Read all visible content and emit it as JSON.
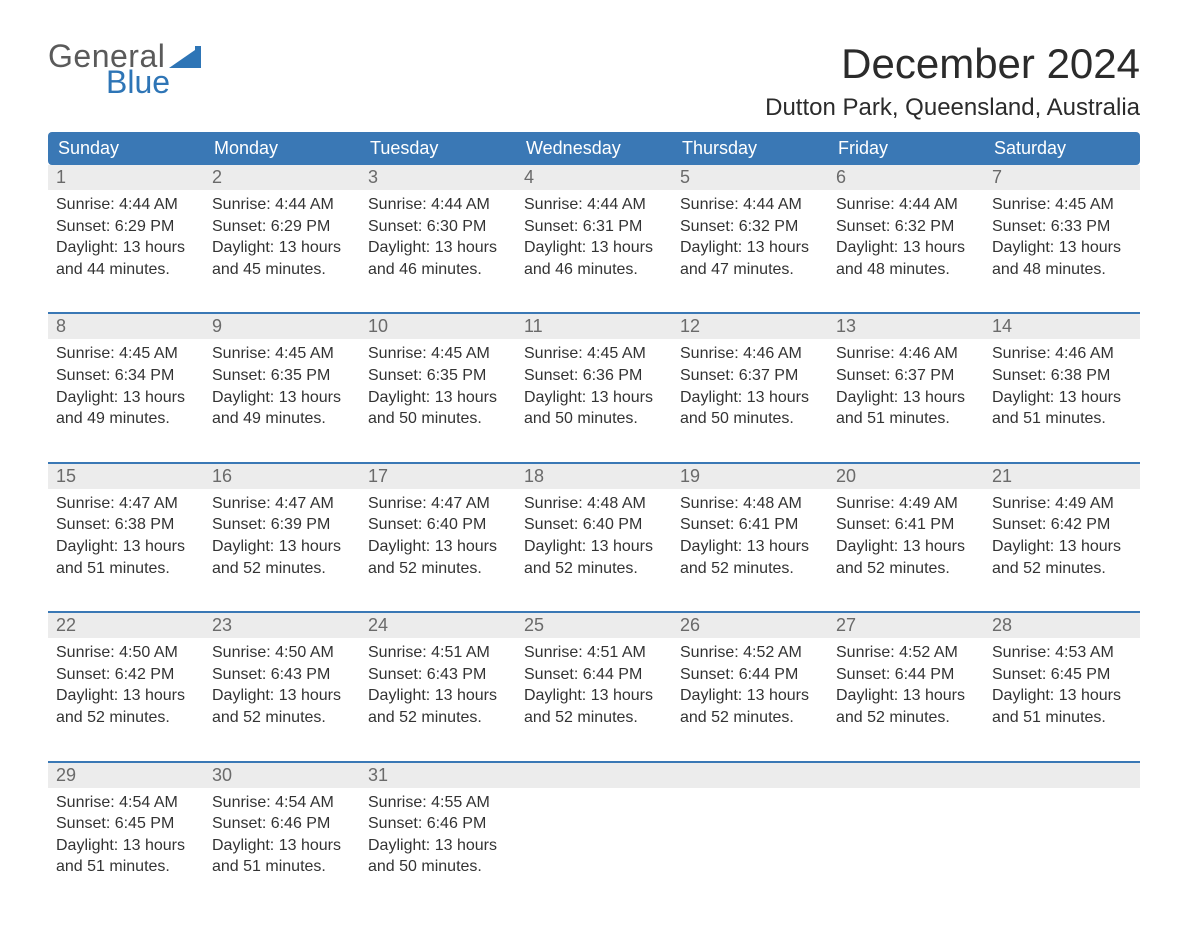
{
  "logo": {
    "word1": "General",
    "word2": "Blue",
    "text_color_general": "#5a5a5a",
    "text_color_blue": "#2e75b6",
    "flag_color": "#2e75b6"
  },
  "title": "December 2024",
  "location": "Dutton Park, Queensland, Australia",
  "colors": {
    "header_bg": "#3a78b5",
    "header_text": "#ffffff",
    "daynum_bg": "#ececec",
    "daynum_text": "#6a6a6a",
    "row_border": "#3a78b5",
    "body_text": "#333333",
    "page_bg": "#ffffff"
  },
  "typography": {
    "title_fontsize": 42,
    "location_fontsize": 24,
    "header_fontsize": 18,
    "daynum_fontsize": 18,
    "body_fontsize": 16
  },
  "day_headers": [
    "Sunday",
    "Monday",
    "Tuesday",
    "Wednesday",
    "Thursday",
    "Friday",
    "Saturday"
  ],
  "weeks": [
    {
      "days": [
        {
          "n": "1",
          "sunrise": "Sunrise: 4:44 AM",
          "sunset": "Sunset: 6:29 PM",
          "d1": "Daylight: 13 hours",
          "d2": "and 44 minutes."
        },
        {
          "n": "2",
          "sunrise": "Sunrise: 4:44 AM",
          "sunset": "Sunset: 6:29 PM",
          "d1": "Daylight: 13 hours",
          "d2": "and 45 minutes."
        },
        {
          "n": "3",
          "sunrise": "Sunrise: 4:44 AM",
          "sunset": "Sunset: 6:30 PM",
          "d1": "Daylight: 13 hours",
          "d2": "and 46 minutes."
        },
        {
          "n": "4",
          "sunrise": "Sunrise: 4:44 AM",
          "sunset": "Sunset: 6:31 PM",
          "d1": "Daylight: 13 hours",
          "d2": "and 46 minutes."
        },
        {
          "n": "5",
          "sunrise": "Sunrise: 4:44 AM",
          "sunset": "Sunset: 6:32 PM",
          "d1": "Daylight: 13 hours",
          "d2": "and 47 minutes."
        },
        {
          "n": "6",
          "sunrise": "Sunrise: 4:44 AM",
          "sunset": "Sunset: 6:32 PM",
          "d1": "Daylight: 13 hours",
          "d2": "and 48 minutes."
        },
        {
          "n": "7",
          "sunrise": "Sunrise: 4:45 AM",
          "sunset": "Sunset: 6:33 PM",
          "d1": "Daylight: 13 hours",
          "d2": "and 48 minutes."
        }
      ]
    },
    {
      "days": [
        {
          "n": "8",
          "sunrise": "Sunrise: 4:45 AM",
          "sunset": "Sunset: 6:34 PM",
          "d1": "Daylight: 13 hours",
          "d2": "and 49 minutes."
        },
        {
          "n": "9",
          "sunrise": "Sunrise: 4:45 AM",
          "sunset": "Sunset: 6:35 PM",
          "d1": "Daylight: 13 hours",
          "d2": "and 49 minutes."
        },
        {
          "n": "10",
          "sunrise": "Sunrise: 4:45 AM",
          "sunset": "Sunset: 6:35 PM",
          "d1": "Daylight: 13 hours",
          "d2": "and 50 minutes."
        },
        {
          "n": "11",
          "sunrise": "Sunrise: 4:45 AM",
          "sunset": "Sunset: 6:36 PM",
          "d1": "Daylight: 13 hours",
          "d2": "and 50 minutes."
        },
        {
          "n": "12",
          "sunrise": "Sunrise: 4:46 AM",
          "sunset": "Sunset: 6:37 PM",
          "d1": "Daylight: 13 hours",
          "d2": "and 50 minutes."
        },
        {
          "n": "13",
          "sunrise": "Sunrise: 4:46 AM",
          "sunset": "Sunset: 6:37 PM",
          "d1": "Daylight: 13 hours",
          "d2": "and 51 minutes."
        },
        {
          "n": "14",
          "sunrise": "Sunrise: 4:46 AM",
          "sunset": "Sunset: 6:38 PM",
          "d1": "Daylight: 13 hours",
          "d2": "and 51 minutes."
        }
      ]
    },
    {
      "days": [
        {
          "n": "15",
          "sunrise": "Sunrise: 4:47 AM",
          "sunset": "Sunset: 6:38 PM",
          "d1": "Daylight: 13 hours",
          "d2": "and 51 minutes."
        },
        {
          "n": "16",
          "sunrise": "Sunrise: 4:47 AM",
          "sunset": "Sunset: 6:39 PM",
          "d1": "Daylight: 13 hours",
          "d2": "and 52 minutes."
        },
        {
          "n": "17",
          "sunrise": "Sunrise: 4:47 AM",
          "sunset": "Sunset: 6:40 PM",
          "d1": "Daylight: 13 hours",
          "d2": "and 52 minutes."
        },
        {
          "n": "18",
          "sunrise": "Sunrise: 4:48 AM",
          "sunset": "Sunset: 6:40 PM",
          "d1": "Daylight: 13 hours",
          "d2": "and 52 minutes."
        },
        {
          "n": "19",
          "sunrise": "Sunrise: 4:48 AM",
          "sunset": "Sunset: 6:41 PM",
          "d1": "Daylight: 13 hours",
          "d2": "and 52 minutes."
        },
        {
          "n": "20",
          "sunrise": "Sunrise: 4:49 AM",
          "sunset": "Sunset: 6:41 PM",
          "d1": "Daylight: 13 hours",
          "d2": "and 52 minutes."
        },
        {
          "n": "21",
          "sunrise": "Sunrise: 4:49 AM",
          "sunset": "Sunset: 6:42 PM",
          "d1": "Daylight: 13 hours",
          "d2": "and 52 minutes."
        }
      ]
    },
    {
      "days": [
        {
          "n": "22",
          "sunrise": "Sunrise: 4:50 AM",
          "sunset": "Sunset: 6:42 PM",
          "d1": "Daylight: 13 hours",
          "d2": "and 52 minutes."
        },
        {
          "n": "23",
          "sunrise": "Sunrise: 4:50 AM",
          "sunset": "Sunset: 6:43 PM",
          "d1": "Daylight: 13 hours",
          "d2": "and 52 minutes."
        },
        {
          "n": "24",
          "sunrise": "Sunrise: 4:51 AM",
          "sunset": "Sunset: 6:43 PM",
          "d1": "Daylight: 13 hours",
          "d2": "and 52 minutes."
        },
        {
          "n": "25",
          "sunrise": "Sunrise: 4:51 AM",
          "sunset": "Sunset: 6:44 PM",
          "d1": "Daylight: 13 hours",
          "d2": "and 52 minutes."
        },
        {
          "n": "26",
          "sunrise": "Sunrise: 4:52 AM",
          "sunset": "Sunset: 6:44 PM",
          "d1": "Daylight: 13 hours",
          "d2": "and 52 minutes."
        },
        {
          "n": "27",
          "sunrise": "Sunrise: 4:52 AM",
          "sunset": "Sunset: 6:44 PM",
          "d1": "Daylight: 13 hours",
          "d2": "and 52 minutes."
        },
        {
          "n": "28",
          "sunrise": "Sunrise: 4:53 AM",
          "sunset": "Sunset: 6:45 PM",
          "d1": "Daylight: 13 hours",
          "d2": "and 51 minutes."
        }
      ]
    },
    {
      "days": [
        {
          "n": "29",
          "sunrise": "Sunrise: 4:54 AM",
          "sunset": "Sunset: 6:45 PM",
          "d1": "Daylight: 13 hours",
          "d2": "and 51 minutes."
        },
        {
          "n": "30",
          "sunrise": "Sunrise: 4:54 AM",
          "sunset": "Sunset: 6:46 PM",
          "d1": "Daylight: 13 hours",
          "d2": "and 51 minutes."
        },
        {
          "n": "31",
          "sunrise": "Sunrise: 4:55 AM",
          "sunset": "Sunset: 6:46 PM",
          "d1": "Daylight: 13 hours",
          "d2": "and 50 minutes."
        },
        {
          "empty": true
        },
        {
          "empty": true
        },
        {
          "empty": true
        },
        {
          "empty": true
        }
      ]
    }
  ]
}
